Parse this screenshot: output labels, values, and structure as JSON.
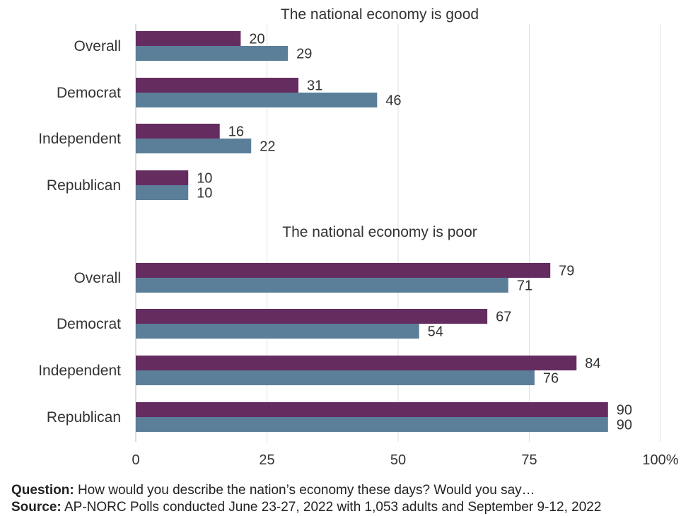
{
  "chart_data": {
    "type": "bar",
    "orientation": "horizontal",
    "colors": {
      "series_a": "#652c60",
      "series_b": "#5b7f98",
      "grid": "#e1e1e1",
      "text": "#333333"
    },
    "xlim": [
      0,
      100
    ],
    "ticks": [
      {
        "value": 0,
        "label": "0"
      },
      {
        "value": 25,
        "label": "25"
      },
      {
        "value": 50,
        "label": "50"
      },
      {
        "value": 75,
        "label": "75"
      },
      {
        "value": 100,
        "label": "100%"
      }
    ],
    "panels": [
      {
        "title": "The national economy is good",
        "categories": [
          "Overall",
          "Democrat",
          "Independent",
          "Republican"
        ],
        "series": [
          {
            "values": [
              20,
              31,
              16,
              10
            ]
          },
          {
            "values": [
              29,
              46,
              22,
              10
            ]
          }
        ]
      },
      {
        "title": "The national economy is poor",
        "categories": [
          "Overall",
          "Democrat",
          "Independent",
          "Republican"
        ],
        "series": [
          {
            "values": [
              79,
              67,
              84,
              90
            ]
          },
          {
            "values": [
              71,
              54,
              76,
              90
            ]
          }
        ]
      }
    ]
  },
  "footer": {
    "question_label": "Question:",
    "question_text": " How would you describe the nation’s economy these days? Would you say…",
    "source_label": "Source:",
    "source_text": " AP-NORC Polls conducted June 23-27, 2022 with 1,053 adults and September 9-12, 2022"
  }
}
